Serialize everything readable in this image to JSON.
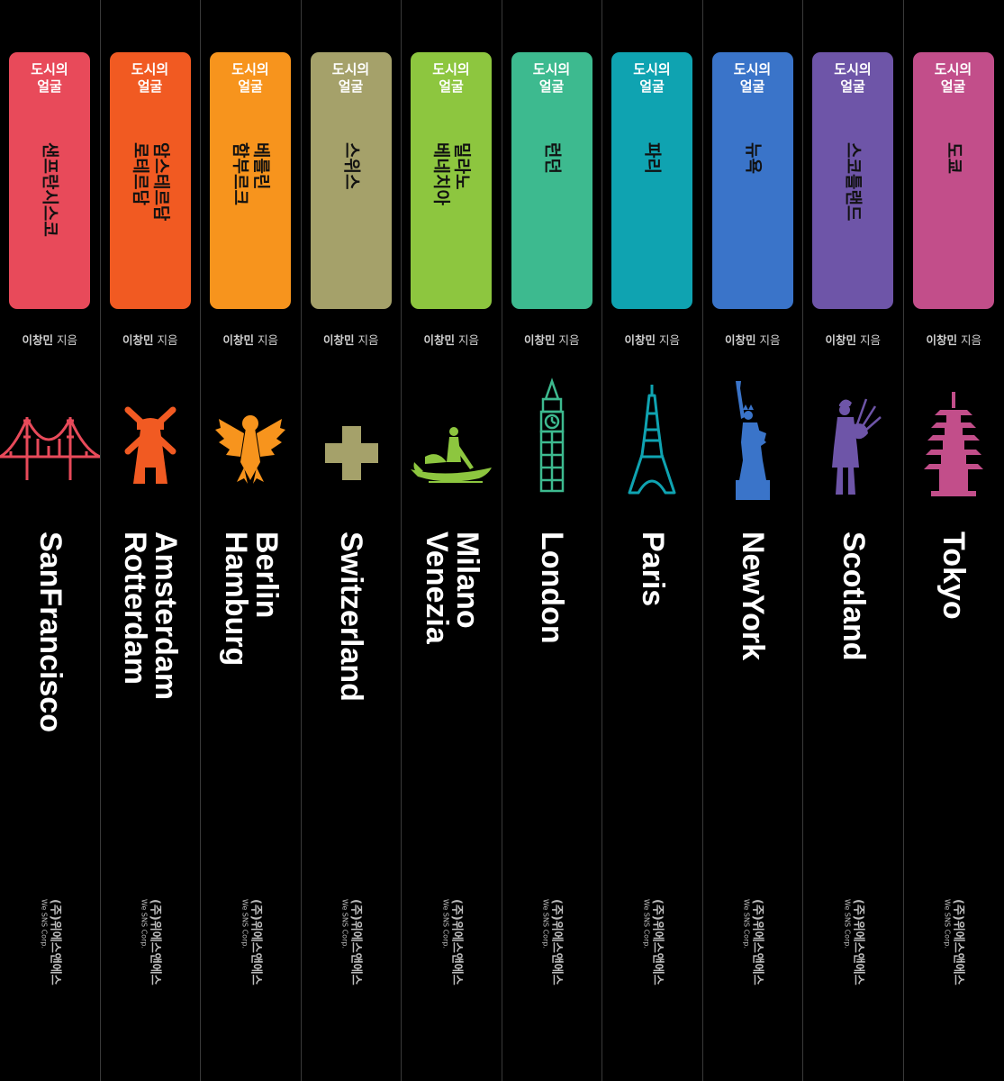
{
  "books": [
    {
      "color": "#e84a5a",
      "series": "도시의\n얼굴",
      "title_kr": "샌프란시스코",
      "author_name": "이창민",
      "author_suffix": "지음",
      "icon": "golden-gate-bridge-icon",
      "title_en": "SanFrancisco",
      "publisher_kr": "(주)위에스앤에스",
      "publisher_en": "We SNS Corp."
    },
    {
      "color": "#f15a22",
      "series": "도시의\n얼굴",
      "title_kr": "암스테르담\n로테르담",
      "author_name": "이창민",
      "author_suffix": "지음",
      "icon": "windmill-icon",
      "title_en": "Amsterdam\nRotterdam",
      "publisher_kr": "(주)위에스앤에스",
      "publisher_en": "We SNS Corp."
    },
    {
      "color": "#f7941d",
      "series": "도시의\n얼굴",
      "title_kr": "베를린\n함부르크",
      "author_name": "이창민",
      "author_suffix": "지음",
      "icon": "german-eagle-icon",
      "title_en": "Berlin\nHamburg",
      "publisher_kr": "(주)위에스앤에스",
      "publisher_en": "We SNS Corp."
    },
    {
      "color": "#a5a16a",
      "series": "도시의\n얼굴",
      "title_kr": "스위스",
      "author_name": "이창민",
      "author_suffix": "지음",
      "icon": "swiss-cross-icon",
      "title_en": "Switzerland",
      "publisher_kr": "(주)위에스앤에스",
      "publisher_en": "We SNS Corp."
    },
    {
      "color": "#8dc63f",
      "series": "도시의\n얼굴",
      "title_kr": "밀라노\n베네치아",
      "author_name": "이창민",
      "author_suffix": "지음",
      "icon": "gondola-icon",
      "title_en": "Milano\nVenezia",
      "publisher_kr": "(주)위에스앤에스",
      "publisher_en": "We SNS Corp."
    },
    {
      "color": "#3dba8f",
      "series": "도시의\n얼굴",
      "title_kr": "런던",
      "author_name": "이창민",
      "author_suffix": "지음",
      "icon": "big-ben-icon",
      "title_en": "London",
      "publisher_kr": "(주)위에스앤에스",
      "publisher_en": "We SNS Corp."
    },
    {
      "color": "#0fa3b1",
      "series": "도시의\n얼굴",
      "title_kr": "파리",
      "author_name": "이창민",
      "author_suffix": "지음",
      "icon": "eiffel-tower-icon",
      "title_en": "Paris",
      "publisher_kr": "(주)위에스앤에스",
      "publisher_en": "We SNS Corp."
    },
    {
      "color": "#3a74c9",
      "series": "도시의\n얼굴",
      "title_kr": "뉴욕",
      "author_name": "이창민",
      "author_suffix": "지음",
      "icon": "statue-of-liberty-icon",
      "title_en": "NewYork",
      "publisher_kr": "(주)위에스앤에스",
      "publisher_en": "We SNS Corp."
    },
    {
      "color": "#6e55a8",
      "series": "도시의\n얼굴",
      "title_kr": "스코틀랜드",
      "author_name": "이창민",
      "author_suffix": "지음",
      "icon": "bagpiper-icon",
      "title_en": "Scotland",
      "publisher_kr": "(주)위에스앤에스",
      "publisher_en": "We SNS Corp."
    },
    {
      "color": "#c24e8a",
      "series": "도시의\n얼굴",
      "title_kr": "도쿄",
      "author_name": "이창민",
      "author_suffix": "지음",
      "icon": "pagoda-icon",
      "title_en": "Tokyo",
      "publisher_kr": "(주)위에스앤에스",
      "publisher_en": "We SNS Corp."
    }
  ]
}
